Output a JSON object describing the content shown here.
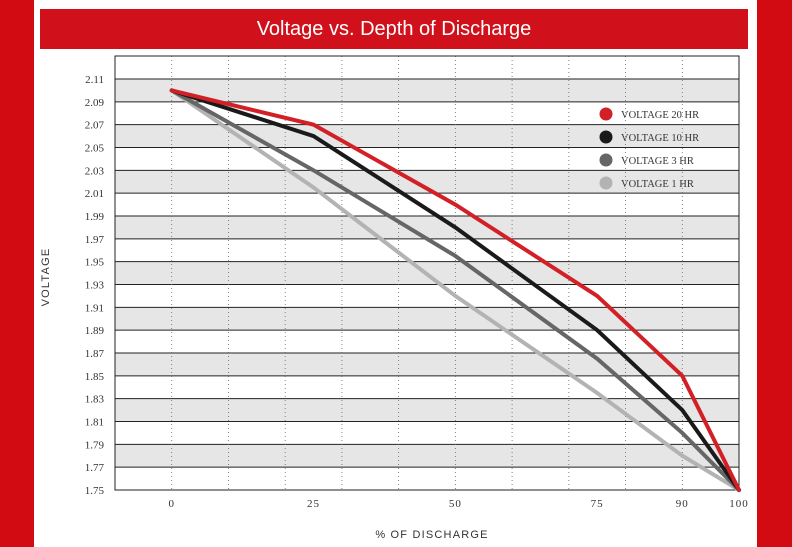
{
  "title": "Voltage vs. Depth of Discharge",
  "colors": {
    "background_red": "#d20a12",
    "title_bar": "#d0111b",
    "band": "#e6e6e6"
  },
  "chart_data": {
    "type": "line",
    "title": "Voltage vs. Depth of Discharge",
    "xlabel": "% OF DISCHARGE",
    "ylabel": "VOLTAGE",
    "xlim": [
      -10,
      100
    ],
    "ylim": [
      1.75,
      2.11
    ],
    "x_ticks": [
      0,
      25,
      50,
      75,
      90,
      100
    ],
    "x_tick_labels": [
      "0",
      "25",
      "50",
      "75",
      "90",
      "100"
    ],
    "y_ticks": [
      1.75,
      1.77,
      1.79,
      1.81,
      1.83,
      1.85,
      1.87,
      1.89,
      1.91,
      1.93,
      1.95,
      1.97,
      1.99,
      2.01,
      2.03,
      2.05,
      2.07,
      2.09,
      2.11
    ],
    "y_tick_labels": [
      "1.75",
      "1.77",
      "1.79",
      "1.81",
      "1.83",
      "1.85",
      "1.87",
      "1.89",
      "1.91",
      "1.93",
      "1.95",
      "1.97",
      "1.99",
      "2.01",
      "2.03",
      "2.05",
      "2.07",
      "2.09",
      "2.11"
    ],
    "grid": true,
    "legend_position": "top-right",
    "x": [
      0,
      25,
      50,
      75,
      90,
      100
    ],
    "series": [
      {
        "name": "VOLTAGE 20 HR",
        "color": "#d32027",
        "values": [
          2.1,
          2.07,
          2.0,
          1.92,
          1.85,
          1.75
        ]
      },
      {
        "name": "VOLTAGE 10 HR",
        "color": "#1a1a1a",
        "values": [
          2.1,
          2.06,
          1.98,
          1.89,
          1.82,
          1.75
        ]
      },
      {
        "name": "VOLTAGE 3 HR",
        "color": "#666666",
        "values": [
          2.1,
          2.03,
          1.955,
          1.865,
          1.8,
          1.75
        ]
      },
      {
        "name": "VOLTAGE 1 HR",
        "color": "#b3b3b3",
        "values": [
          2.1,
          2.015,
          1.92,
          1.835,
          1.78,
          1.75
        ]
      }
    ]
  }
}
